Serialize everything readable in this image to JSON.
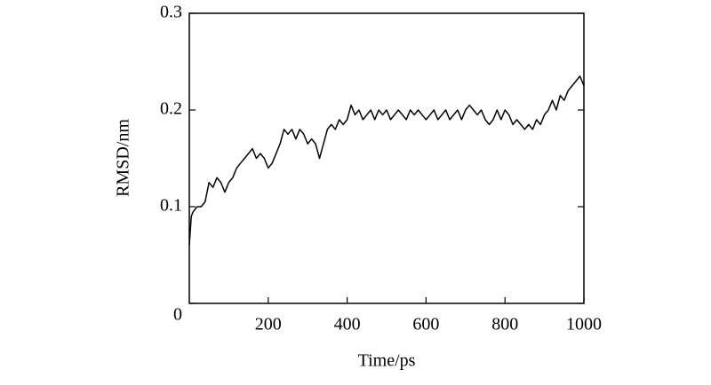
{
  "chart_data": {
    "type": "line",
    "x_label": "Time/ps",
    "y_label": "RMSD/nm",
    "x": [
      0,
      5,
      10,
      20,
      30,
      40,
      50,
      60,
      70,
      80,
      90,
      100,
      110,
      120,
      130,
      140,
      150,
      160,
      170,
      180,
      190,
      200,
      210,
      220,
      230,
      240,
      250,
      260,
      270,
      280,
      290,
      300,
      310,
      320,
      330,
      340,
      350,
      360,
      370,
      380,
      390,
      400,
      410,
      420,
      430,
      440,
      450,
      460,
      470,
      480,
      490,
      500,
      510,
      520,
      530,
      540,
      550,
      560,
      570,
      580,
      590,
      600,
      610,
      620,
      630,
      640,
      650,
      660,
      670,
      680,
      690,
      700,
      710,
      720,
      730,
      740,
      750,
      760,
      770,
      780,
      790,
      800,
      810,
      820,
      830,
      840,
      850,
      860,
      870,
      880,
      890,
      900,
      910,
      920,
      930,
      940,
      950,
      960,
      970,
      980,
      990,
      1000
    ],
    "series": [
      {
        "name": "RMSD",
        "color": "#000000",
        "values": [
          0.06,
          0.09,
          0.095,
          0.1,
          0.1,
          0.105,
          0.125,
          0.12,
          0.13,
          0.125,
          0.115,
          0.125,
          0.13,
          0.14,
          0.145,
          0.15,
          0.155,
          0.16,
          0.15,
          0.155,
          0.15,
          0.14,
          0.145,
          0.155,
          0.165,
          0.18,
          0.175,
          0.18,
          0.17,
          0.18,
          0.175,
          0.165,
          0.17,
          0.165,
          0.15,
          0.165,
          0.18,
          0.185,
          0.18,
          0.19,
          0.185,
          0.19,
          0.205,
          0.195,
          0.2,
          0.19,
          0.195,
          0.2,
          0.19,
          0.2,
          0.195,
          0.2,
          0.19,
          0.195,
          0.2,
          0.195,
          0.19,
          0.2,
          0.195,
          0.2,
          0.195,
          0.19,
          0.195,
          0.2,
          0.19,
          0.195,
          0.2,
          0.19,
          0.195,
          0.2,
          0.19,
          0.2,
          0.205,
          0.2,
          0.195,
          0.2,
          0.19,
          0.185,
          0.19,
          0.2,
          0.19,
          0.2,
          0.195,
          0.185,
          0.19,
          0.185,
          0.18,
          0.185,
          0.18,
          0.19,
          0.185,
          0.195,
          0.2,
          0.21,
          0.2,
          0.215,
          0.21,
          0.22,
          0.225,
          0.23,
          0.235,
          0.225
        ]
      }
    ],
    "xlim": [
      0,
      1000
    ],
    "xticks": [
      200,
      400,
      600,
      800,
      1000
    ],
    "ylim": [
      0,
      0.3
    ],
    "yticks": [
      0,
      0.1,
      0.2,
      0.3
    ]
  }
}
